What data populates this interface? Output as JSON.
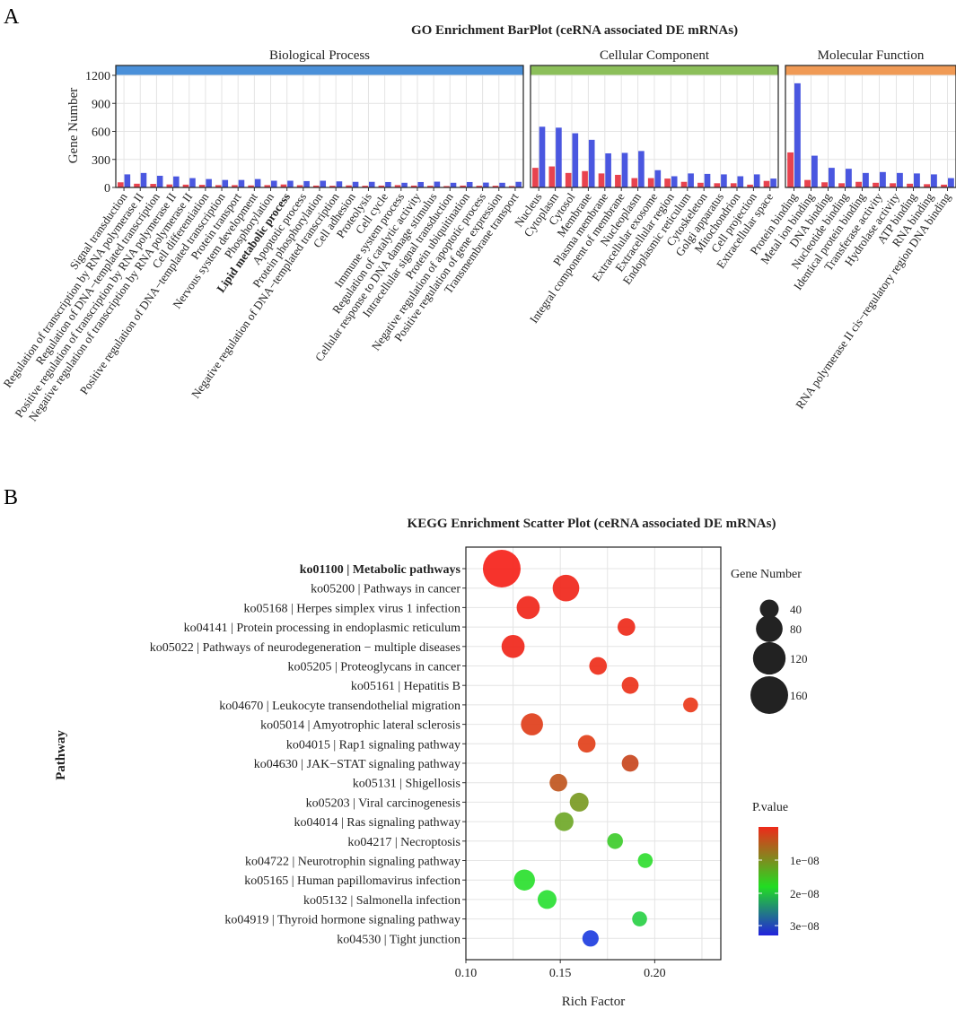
{
  "panels": {
    "a_letter": "A",
    "b_letter": "B"
  },
  "chart_data": [
    {
      "type": "bar",
      "title": "GO Enrichment BarPlot (ceRNA associated DE mRNAs)",
      "ylabel": "Gene Number",
      "ylim": [
        0,
        1200
      ],
      "yticks": [
        0,
        300,
        600,
        900,
        1200
      ],
      "series_colors": [
        "#e8434f",
        "#4a57e0"
      ],
      "highlight_color": "#dd2222",
      "facets": [
        {
          "name": "Biological Process",
          "strip_color": "#4a90d9",
          "label_color": "#4a90d9",
          "categories": [
            {
              "label": "Signal transduction",
              "values": [
                55,
                140
              ]
            },
            {
              "label": "Regulation of transcription by RNA polymerase II",
              "values": [
                40,
                155
              ]
            },
            {
              "label": "Regulation of DNA−templated transcription",
              "values": [
                38,
                125
              ]
            },
            {
              "label": "Positive regulation of transcription by RNA polymerase II",
              "values": [
                32,
                118
              ]
            },
            {
              "label": "Negative regulation of transcription by RNA polymerase II",
              "values": [
                30,
                100
              ]
            },
            {
              "label": "Cell differentiation",
              "values": [
                28,
                90
              ]
            },
            {
              "label": "Positive regulation of DNA−templated transcription",
              "values": [
                25,
                80
              ]
            },
            {
              "label": "Protein transport",
              "values": [
                25,
                80
              ]
            },
            {
              "label": "Nervous system development",
              "values": [
                22,
                90
              ]
            },
            {
              "label": "Phosphorylation",
              "values": [
                25,
                72
              ]
            },
            {
              "label": "Lipid metabolic process",
              "values": [
                32,
                72
              ],
              "highlight": true
            },
            {
              "label": "Apoptotic process",
              "values": [
                24,
                68
              ]
            },
            {
              "label": "Protein phosphorylation",
              "values": [
                20,
                72
              ]
            },
            {
              "label": "Negative regulation of DNA−templated transcription",
              "values": [
                18,
                65
              ]
            },
            {
              "label": "Cell adhesion",
              "values": [
                22,
                60
              ]
            },
            {
              "label": "Proteolysis",
              "values": [
                18,
                60
              ]
            },
            {
              "label": "Cell cycle",
              "values": [
                20,
                58
              ]
            },
            {
              "label": "Immune system process",
              "values": [
                25,
                50
              ]
            },
            {
              "label": "Regulation of catalytic activity",
              "values": [
                20,
                58
              ]
            },
            {
              "label": "Cellular response to DNA damage stimulus",
              "values": [
                18,
                62
              ]
            },
            {
              "label": "Intracellular signal transduction",
              "values": [
                15,
                50
              ]
            },
            {
              "label": "Protein ubiquitination",
              "values": [
                20,
                58
              ]
            },
            {
              "label": "Negative regulation of apoptotic process",
              "values": [
                18,
                52
              ]
            },
            {
              "label": "Positive regulation of gene expression",
              "values": [
                18,
                50
              ]
            },
            {
              "label": "Transmembrane transport",
              "values": [
                15,
                60
              ]
            }
          ]
        },
        {
          "name": "Cellular Component",
          "strip_color": "#8cbf5a",
          "label_color": "#8cbf5a",
          "categories": [
            {
              "label": "Nucleus",
              "values": [
                210,
                650
              ]
            },
            {
              "label": "Cytoplasm",
              "values": [
                225,
                640
              ]
            },
            {
              "label": "Cytosol",
              "values": [
                155,
                580
              ]
            },
            {
              "label": "Membrane",
              "values": [
                175,
                510
              ]
            },
            {
              "label": "Plasma membrane",
              "values": [
                150,
                365
              ]
            },
            {
              "label": "Integral component of membrane",
              "values": [
                135,
                370
              ]
            },
            {
              "label": "Nucleoplasm",
              "values": [
                100,
                390
              ]
            },
            {
              "label": "Extracellular exosome",
              "values": [
                100,
                185
              ]
            },
            {
              "label": "Extracellular region",
              "values": [
                95,
                120
              ]
            },
            {
              "label": "Endoplasmic reticulum",
              "values": [
                60,
                150
              ]
            },
            {
              "label": "Cytoskeleton",
              "values": [
                50,
                145
              ]
            },
            {
              "label": "Golgi apparatus",
              "values": [
                45,
                140
              ]
            },
            {
              "label": "Mitochondrion",
              "values": [
                45,
                120
              ]
            },
            {
              "label": "Cell projection",
              "values": [
                30,
                140
              ]
            },
            {
              "label": "Extracellular space",
              "values": [
                70,
                95
              ]
            }
          ]
        },
        {
          "name": "Molecular Function",
          "strip_color": "#f09a55",
          "label_color": "#f09a55",
          "categories": [
            {
              "label": "Protein binding",
              "values": [
                375,
                1115
              ]
            },
            {
              "label": "Metal ion binding",
              "values": [
                80,
                340
              ]
            },
            {
              "label": "DNA binding",
              "values": [
                55,
                210
              ]
            },
            {
              "label": "Nucleotide binding",
              "values": [
                45,
                200
              ]
            },
            {
              "label": "Identical protein binding",
              "values": [
                60,
                155
              ]
            },
            {
              "label": "Transferase activity",
              "values": [
                50,
                165
              ]
            },
            {
              "label": "Hydrolase activity",
              "values": [
                45,
                155
              ]
            },
            {
              "label": "ATP binding",
              "values": [
                40,
                150
              ]
            },
            {
              "label": "RNA binding",
              "values": [
                35,
                140
              ]
            },
            {
              "label": "RNA polymerase II cis−regulatory region DNA binding",
              "values": [
                30,
                100
              ]
            }
          ]
        }
      ]
    },
    {
      "type": "scatter",
      "title": "KEGG Enrichment Scatter Plot (ceRNA associated DE mRNAs)",
      "xlabel": "Rich Factor",
      "ylabel": "Pathway",
      "xlim": [
        0.1,
        0.235
      ],
      "xticks": [
        0.1,
        0.15,
        0.2
      ],
      "xtick_labels": [
        "0.10",
        "0.15",
        "0.20"
      ],
      "size_legend_title": "Gene Number",
      "size_legend": [
        40,
        80,
        120,
        160
      ],
      "color_legend_title": "P.value",
      "color_legend_labels": [
        "1e−08",
        "2e−08",
        "3e−08"
      ],
      "color_stops": [
        "#2222dd",
        "#22dd22",
        "#ee2a1a"
      ],
      "highlight_color": "#dd1111",
      "points": [
        {
          "pathway": "ko01100 | Metabolic pathways",
          "x": 0.119,
          "size": 160,
          "color": "#f5221a",
          "highlight": true
        },
        {
          "pathway": "ko05200 | Pathways in cancer",
          "x": 0.153,
          "size": 80,
          "color": "#f0261a"
        },
        {
          "pathway": "ko05168 | Herpes simplex virus 1 infection",
          "x": 0.133,
          "size": 60,
          "color": "#f0261a"
        },
        {
          "pathway": "ko04141 | Protein processing in endoplasmic reticulum",
          "x": 0.185,
          "size": 35,
          "color": "#ee2a1a"
        },
        {
          "pathway": "ko05022 | Pathways of neurodegeneration − multiple diseases",
          "x": 0.125,
          "size": 60,
          "color": "#f0261a"
        },
        {
          "pathway": "ko05205 | Proteoglycans in cancer",
          "x": 0.17,
          "size": 35,
          "color": "#ee2e1a"
        },
        {
          "pathway": "ko05161 | Hepatitis B",
          "x": 0.187,
          "size": 32,
          "color": "#ec321a"
        },
        {
          "pathway": "ko04670 | Leukocyte transendothelial migration",
          "x": 0.219,
          "size": 25,
          "color": "#ea3a1a"
        },
        {
          "pathway": "ko05014 | Amyotrophic lateral sclerosis",
          "x": 0.135,
          "size": 55,
          "color": "#e03e1a"
        },
        {
          "pathway": "ko04015 | Rap1 signaling pathway",
          "x": 0.164,
          "size": 35,
          "color": "#e2401a"
        },
        {
          "pathway": "ko04630 | JAK−STAT signaling pathway",
          "x": 0.187,
          "size": 32,
          "color": "#c8461e"
        },
        {
          "pathway": "ko05131 | Shigellosis",
          "x": 0.149,
          "size": 35,
          "color": "#c0561e"
        },
        {
          "pathway": "ko05203 | Viral carcinogenesis",
          "x": 0.16,
          "size": 40,
          "color": "#7a9a22"
        },
        {
          "pathway": "ko04014 | Ras signaling pathway",
          "x": 0.152,
          "size": 40,
          "color": "#6fa828"
        },
        {
          "pathway": "ko04217 | Necroptosis",
          "x": 0.179,
          "size": 28,
          "color": "#3ecc2c"
        },
        {
          "pathway": "ko04722 | Neurotrophin signaling pathway",
          "x": 0.195,
          "size": 25,
          "color": "#30dd30"
        },
        {
          "pathway": "ko05165 | Human papillomavirus infection",
          "x": 0.131,
          "size": 50,
          "color": "#2ae02e"
        },
        {
          "pathway": "ko05132 | Salmonella infection",
          "x": 0.143,
          "size": 40,
          "color": "#2ae034"
        },
        {
          "pathway": "ko04919 | Thyroid hormone signaling pathway",
          "x": 0.192,
          "size": 25,
          "color": "#2ad046"
        },
        {
          "pathway": "ko04530 | Tight junction",
          "x": 0.166,
          "size": 30,
          "color": "#1e3ee0"
        }
      ]
    }
  ]
}
